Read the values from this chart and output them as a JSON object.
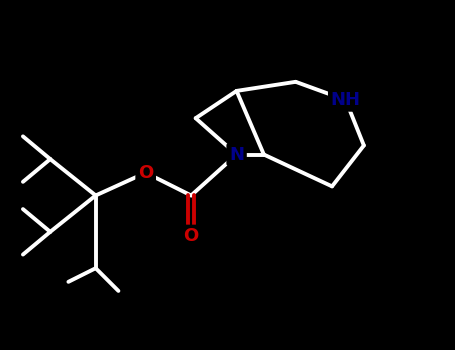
{
  "background_color": "#000000",
  "bond_color": "#ffffff",
  "N_color": "#00008b",
  "O_color": "#cc0000",
  "bond_width": 2.8,
  "font_size_atom": 14,
  "fig_width": 4.55,
  "fig_height": 3.5,
  "dpi": 100,
  "xlim": [
    0,
    10
  ],
  "ylim": [
    0,
    7.7
  ]
}
